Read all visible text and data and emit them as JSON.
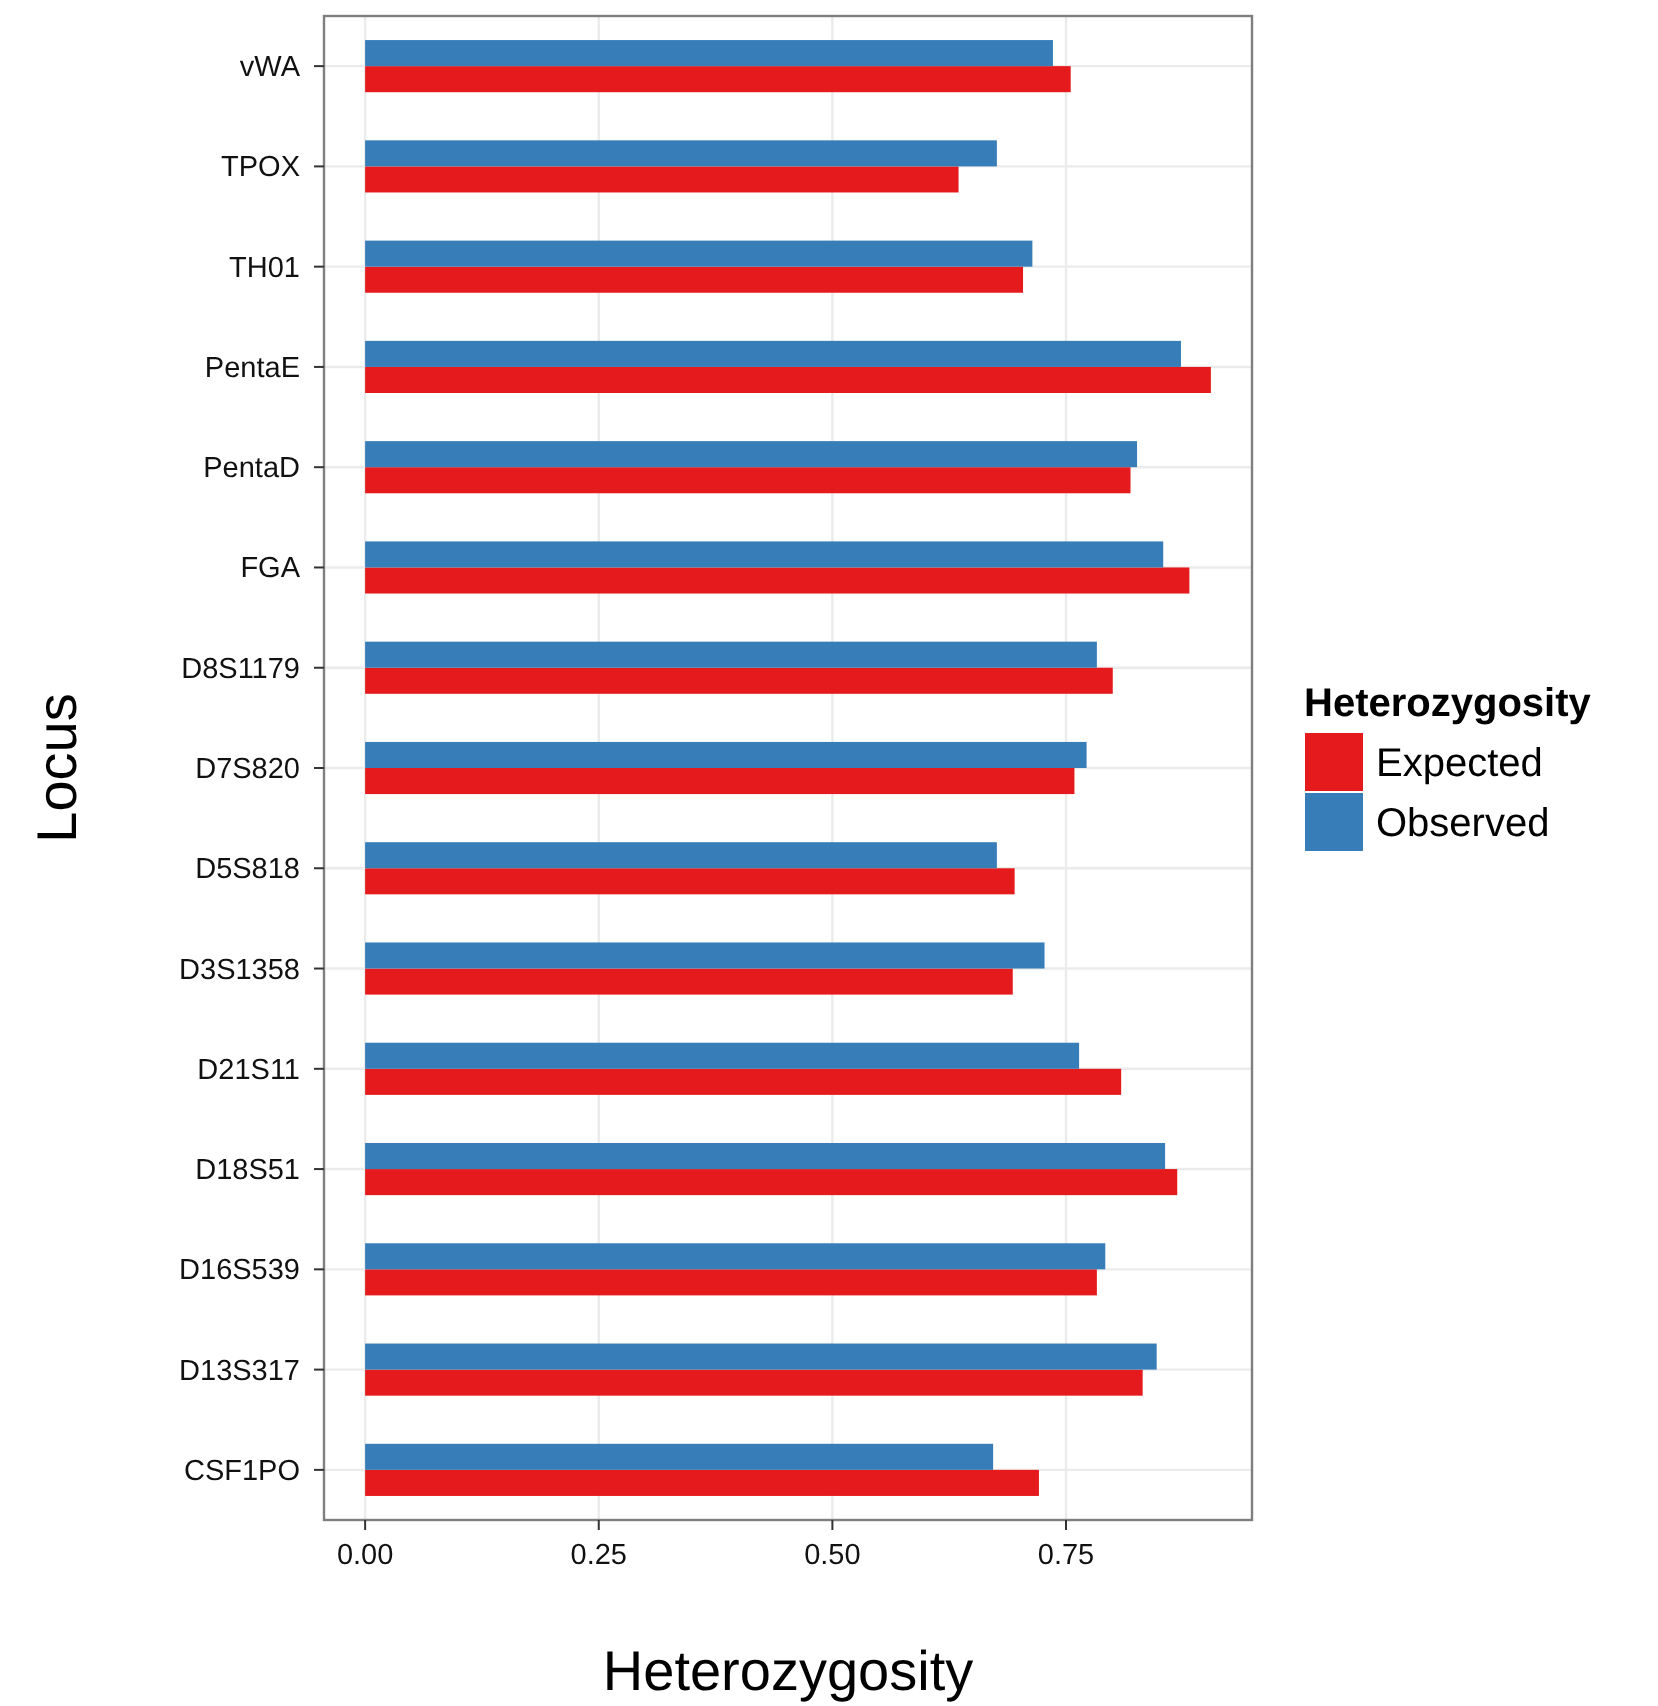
{
  "chart_data": {
    "type": "bar",
    "orientation": "horizontal",
    "xlabel": "Heterozygosity",
    "ylabel": "Locus",
    "legend_title": "Heterozygosity",
    "legend": "right",
    "grid": true,
    "categories": [
      "vWA",
      "TPOX",
      "TH01",
      "PentaE",
      "PentaD",
      "FGA",
      "D8S1179",
      "D7S820",
      "D5S818",
      "D3S1358",
      "D21S11",
      "D18S51",
      "D16S539",
      "D13S317",
      "CSF1PO"
    ],
    "xlim": [
      -0.044,
      0.949
    ],
    "xticks": [
      {
        "value": 0,
        "label": "0.00"
      },
      0.25,
      {
        "value": 0.5,
        "label": "0.50"
      },
      0.75
    ],
    "series": [
      {
        "name": "Expected",
        "color": "#e41a1c",
        "values": [
          0.755,
          0.635,
          0.704,
          0.905,
          0.819,
          0.882,
          0.8,
          0.759,
          0.695,
          0.693,
          0.809,
          0.869,
          0.783,
          0.832,
          0.721
        ]
      },
      {
        "name": "Observed",
        "color": "#377eb8",
        "values": [
          0.736,
          0.676,
          0.714,
          0.873,
          0.826,
          0.854,
          0.783,
          0.772,
          0.676,
          0.727,
          0.764,
          0.856,
          0.792,
          0.847,
          0.672
        ]
      }
    ]
  }
}
